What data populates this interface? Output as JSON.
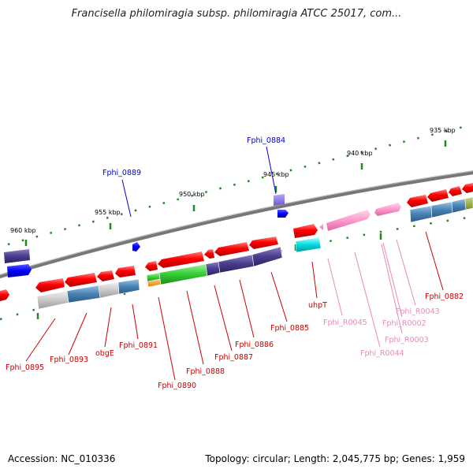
{
  "title": "Francisella philomiragia subsp. philomiragia ATCC 25017, com...",
  "footer": {
    "accession": "Accession: NC_010336",
    "summary": "Topology: circular; Length: 2,045,775 bp; Genes: 1,959"
  },
  "kbp_labels": [
    "935 kbp",
    "940 kbp",
    "945 kbp",
    "950 kbp",
    "955 kbp",
    "960 kbp"
  ],
  "gene_labels": [
    "Fphi_0884",
    "Fphi_0889",
    "Fphi_0895",
    "Fphi_0893",
    "obgE",
    "Fphi_0891",
    "Fphi_0890",
    "Fphi_0888",
    "Fphi_0887",
    "Fphi_0886",
    "Fphi_0885",
    "uhpT",
    "Fphi_R0045",
    "Fphi_R0044",
    "Fphi_R0003",
    "Fphi_R0002",
    "Fphi_R0043",
    "Fphi_0882"
  ],
  "colors": {
    "cds": "#ff0000",
    "rrna": "#ff99cc",
    "blue_label": "#0000cc",
    "red_label": "#cc0000",
    "pink_label": "#ee88bb",
    "tick": "#228822",
    "backbone": "#777777"
  }
}
